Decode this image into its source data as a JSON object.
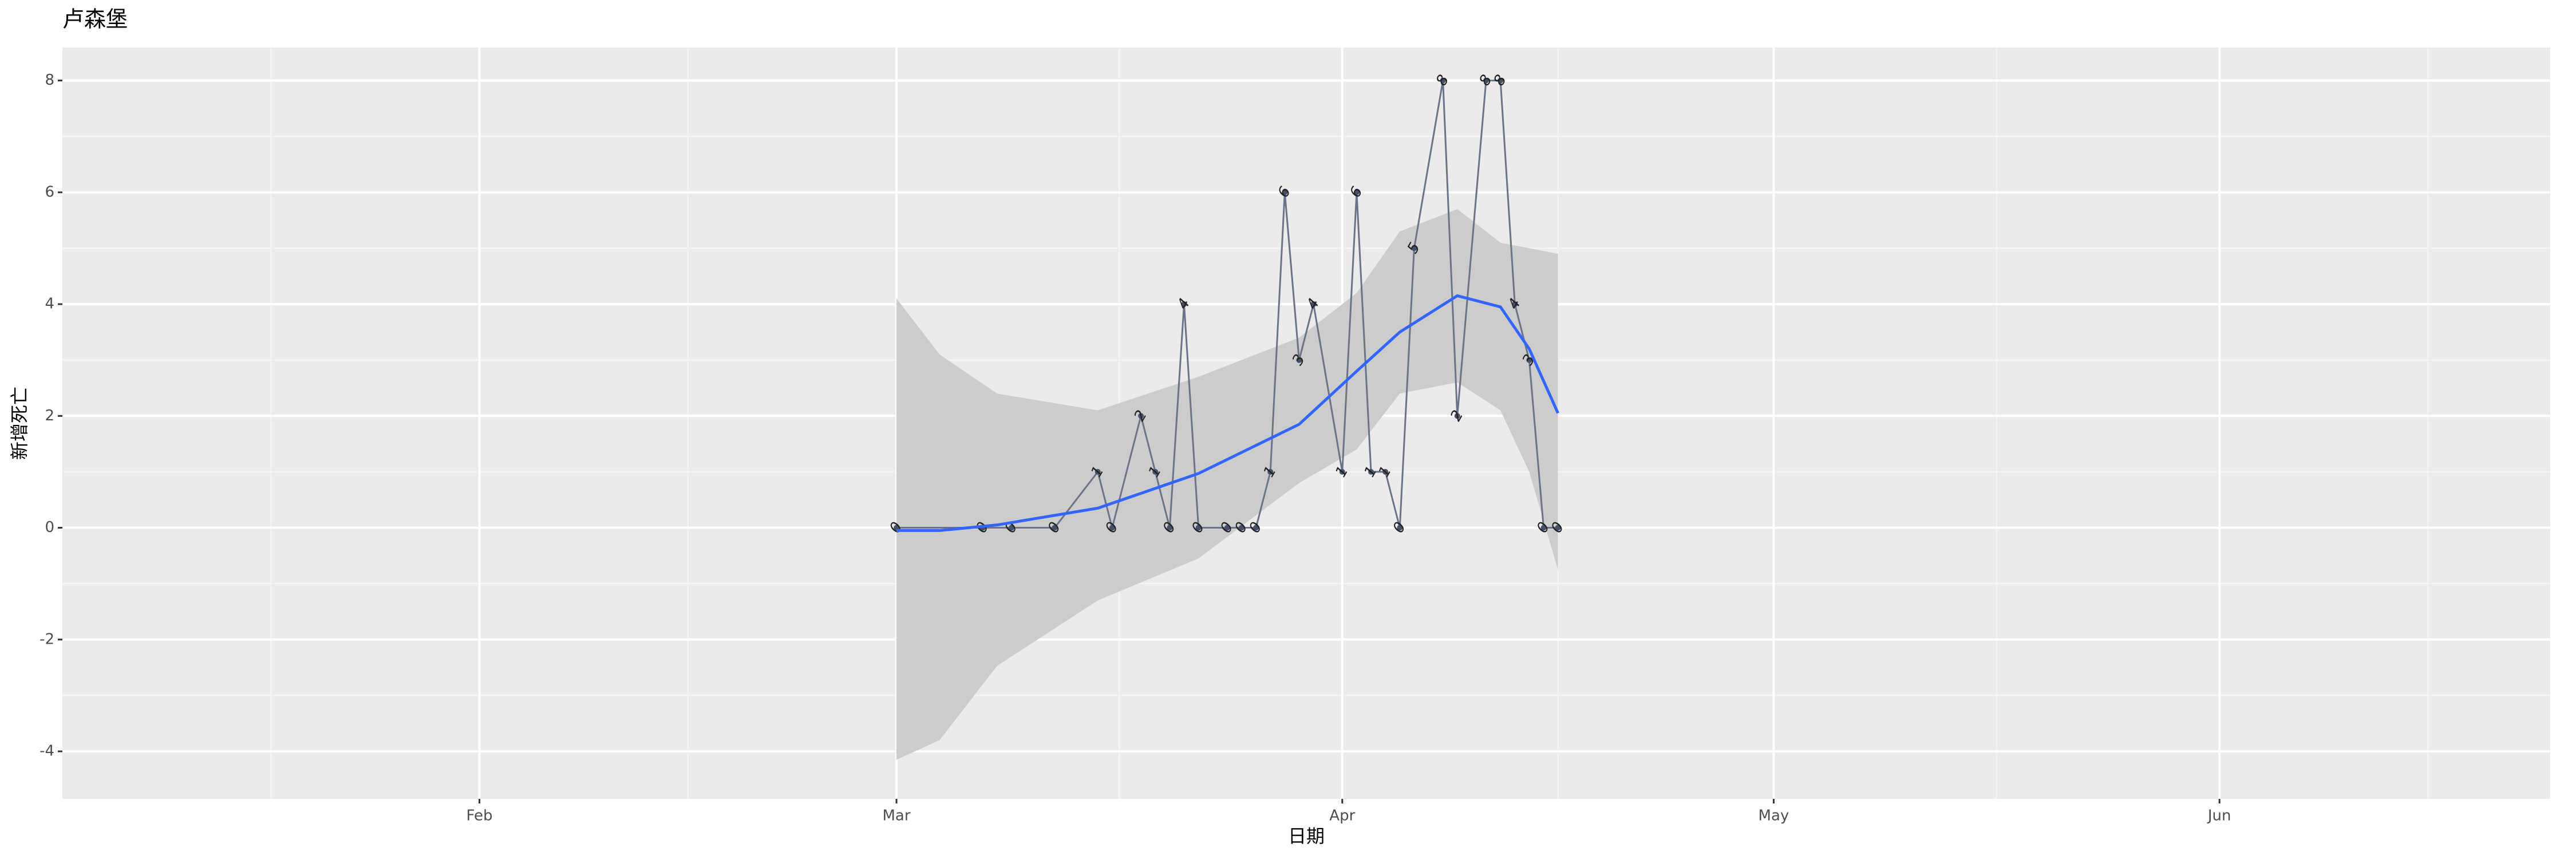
{
  "chart_data": {
    "type": "line",
    "title": "卢森堡",
    "x_label": "日期",
    "y_label": "新增死亡",
    "x": [
      "03-01",
      "03-07",
      "03-09",
      "03-12",
      "03-15",
      "03-16",
      "03-18",
      "03-19",
      "03-20",
      "03-21",
      "03-22",
      "03-24",
      "03-25",
      "03-26",
      "03-27",
      "03-28",
      "03-29",
      "03-30",
      "04-01",
      "04-02",
      "04-03",
      "04-04",
      "04-05",
      "04-06",
      "04-08",
      "04-09",
      "04-11",
      "04-12",
      "04-13",
      "04-14",
      "04-15",
      "04-16"
    ],
    "values": [
      0,
      0,
      0,
      0,
      1,
      0,
      2,
      1,
      0,
      4,
      0,
      0,
      0,
      0,
      1,
      6,
      3,
      4,
      1,
      6,
      1,
      1,
      0,
      5,
      8,
      2,
      8,
      8,
      4,
      3,
      0,
      0
    ],
    "color": "#6b7386",
    "point_color": "#46506a",
    "smooth": {
      "color": "#3366ff",
      "band_color": "#cccccc",
      "x": [
        "03-01",
        "03-04",
        "03-08",
        "03-15",
        "03-22",
        "03-29",
        "04-02",
        "04-05",
        "04-09",
        "04-12",
        "04-14",
        "04-16"
      ],
      "values": [
        -0.05,
        -0.05,
        0.05,
        0.35,
        0.97,
        1.85,
        2.8,
        3.5,
        4.15,
        3.95,
        3.2,
        2.05
      ],
      "lower": [
        -4.15,
        -3.8,
        -2.47,
        -1.3,
        -0.55,
        0.8,
        1.4,
        2.4,
        2.6,
        2.1,
        1.0,
        -0.75
      ],
      "upper": [
        4.1,
        3.1,
        2.4,
        2.1,
        2.7,
        3.4,
        4.2,
        5.3,
        5.7,
        5.1,
        5.0,
        4.9
      ]
    },
    "xlim": [
      "01-03",
      "06-24"
    ],
    "xticks": [
      {
        "value": "02-01",
        "label": "Feb"
      },
      {
        "value": "03-01",
        "label": "Mar"
      },
      {
        "value": "04-01",
        "label": "Apr"
      },
      {
        "value": "05-01",
        "label": "May"
      },
      {
        "value": "06-01",
        "label": "Jun"
      }
    ],
    "ylim": [
      -4.85,
      8.59
    ],
    "yticks": [
      -4,
      -2,
      0,
      2,
      4,
      6,
      8
    ],
    "grid": true
  }
}
